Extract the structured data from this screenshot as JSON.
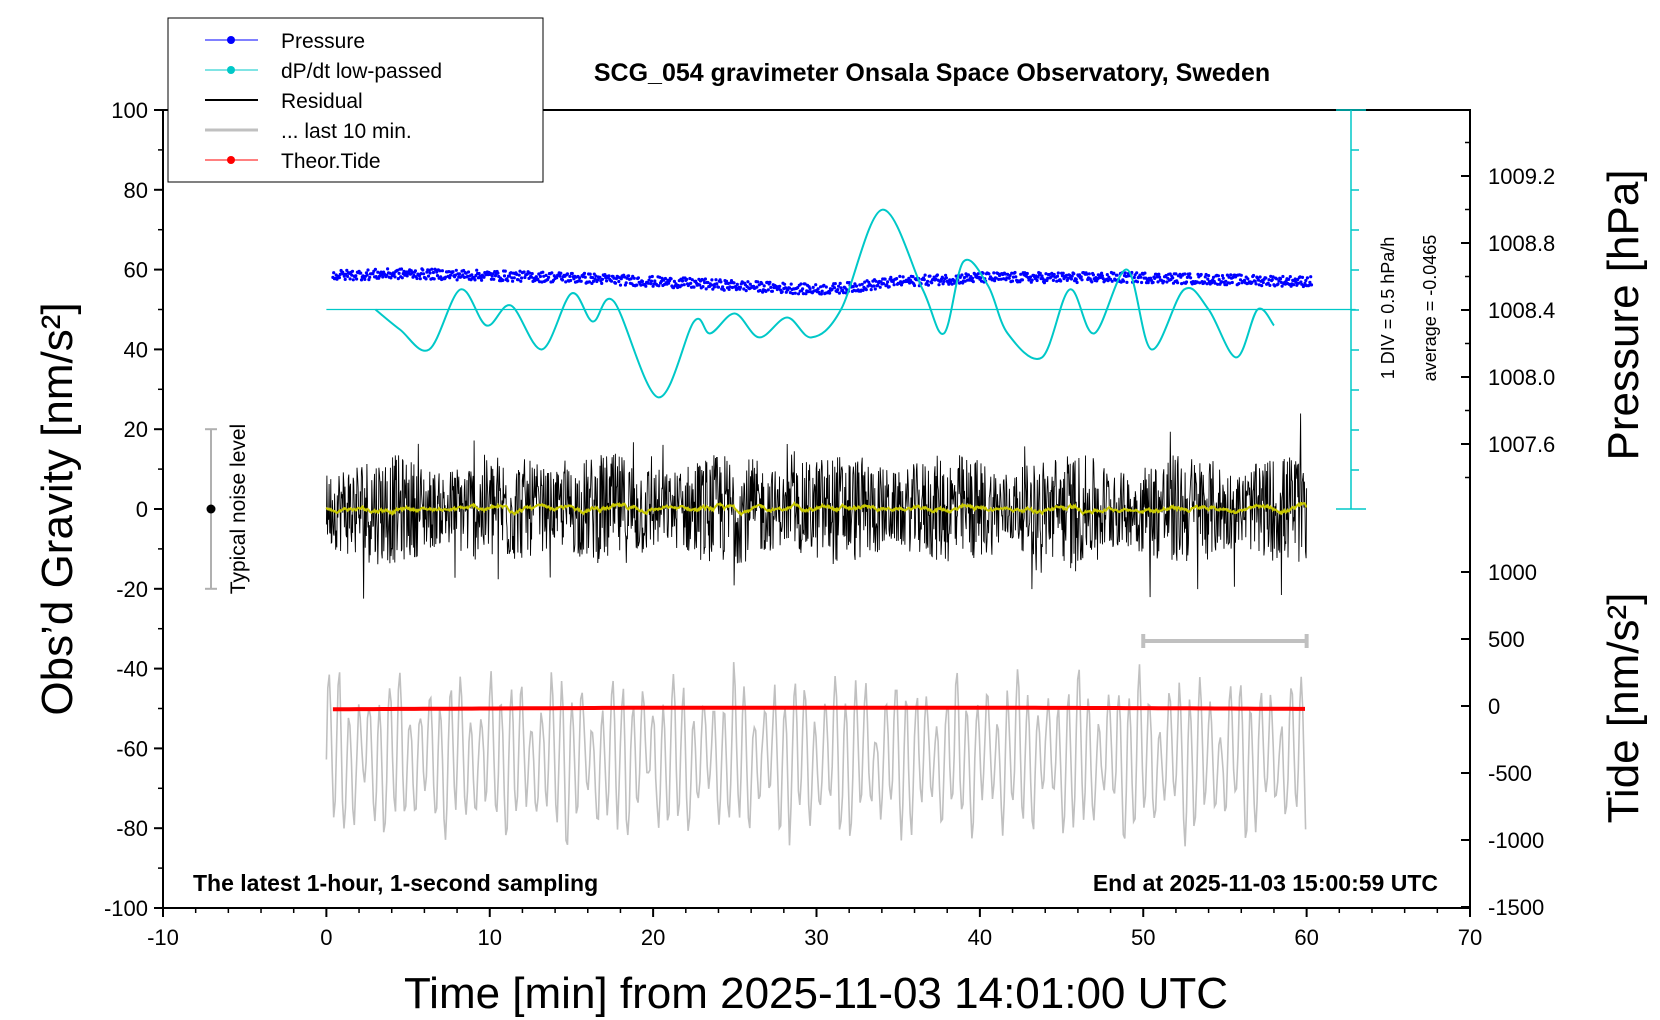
{
  "chart_data": {
    "type": "line",
    "title": "SCG_054 gravimeter Onsala Space Observatory, Sweden",
    "xlabel": "Time [min] from 2025-11-03 14:01:00 UTC",
    "ylabel_left": "Obs’d Gravity [nm/s²]",
    "ylabel_right_pressure": "Pressure [hPa]",
    "ylabel_right_tide": "Tide [nm/s²]",
    "xlim": [
      -10,
      70
    ],
    "ylim": [
      -100,
      100
    ],
    "x_ticks": [
      "-10",
      "0",
      "10",
      "20",
      "30",
      "40",
      "50",
      "60",
      "70"
    ],
    "y_ticks": [
      "-100",
      "-80",
      "-60",
      "-40",
      "-20",
      "0",
      "20",
      "40",
      "60",
      "80",
      "100"
    ],
    "pressure_axis": {
      "range": [
        1007.6,
        1009.2
      ],
      "ticks": [
        "1007.6",
        "1008.0",
        "1008.4",
        "1008.8",
        "1009.2"
      ]
    },
    "tide_axis": {
      "range": [
        -1500,
        1000
      ],
      "ticks": [
        "-1500",
        "-1000",
        "-500",
        "0",
        "500",
        "1000"
      ]
    },
    "legend": {
      "placement": "top-left",
      "entries": [
        "Pressure",
        "dP/dt low-passed",
        "Residual",
        "... last 10 min.",
        "Theor.Tide"
      ]
    },
    "series": [
      {
        "name": "Pressure",
        "color": "#0000ff",
        "x": [
          0,
          5,
          10,
          15,
          20,
          25,
          30,
          32,
          35,
          40,
          45,
          50,
          55,
          60
        ],
        "values": [
          58.5,
          59.0,
          58.5,
          58.0,
          57.0,
          56.0,
          55.0,
          55.5,
          57.0,
          58.0,
          58.0,
          58.0,
          57.5,
          57.0
        ]
      },
      {
        "name": "dP/dt low-passed",
        "color": "#00c8c8",
        "x": [
          3,
          4.5,
          6.3,
          8.2,
          9.8,
          11.3,
          13.2,
          15.0,
          16.3,
          17.6,
          20.3,
          22.5,
          23.5,
          25.0,
          26.5,
          28.2,
          29.7,
          31.5,
          34.0,
          36.5,
          37.8,
          39.0,
          40.5,
          41.7,
          43.8,
          45.5,
          47.0,
          49.0,
          50.5,
          52.5,
          54.0,
          55.7,
          57.0,
          58.0
        ],
        "values": [
          50,
          45,
          40,
          55,
          46,
          51,
          40,
          54,
          47,
          52,
          28,
          47,
          44,
          49,
          43,
          48,
          43,
          50,
          75,
          55,
          44,
          62,
          56,
          44,
          38,
          55,
          44,
          60,
          40,
          55,
          50,
          38,
          50,
          46
        ]
      },
      {
        "name": "Residual",
        "color": "#000000",
        "band": [
          -28,
          28
        ],
        "baseline": 0
      },
      {
        "name": "... last 10 min.",
        "color": "#c0c0c0",
        "band": [
          -88,
          -37
        ],
        "baseline": -62
      },
      {
        "name": "Theor.Tide",
        "color": "#ff0000",
        "x": [
          0,
          10,
          20,
          30,
          40,
          50,
          60
        ],
        "values": [
          -50.2,
          -50.0,
          -49.8,
          -49.8,
          -49.8,
          -49.9,
          -50.1
        ]
      }
    ],
    "annotations": {
      "noise_label": "Typical noise level",
      "noise_range": [
        -20,
        20
      ],
      "scale_div": "1 DIV = 0.5 hPa/h",
      "scale_avg": "average = -0.0465",
      "window_bar_x": [
        50,
        60
      ],
      "footer_left": "The latest 1-hour, 1-second sampling",
      "footer_right": "End at 2025-11-03 15:00:59 UTC"
    }
  }
}
